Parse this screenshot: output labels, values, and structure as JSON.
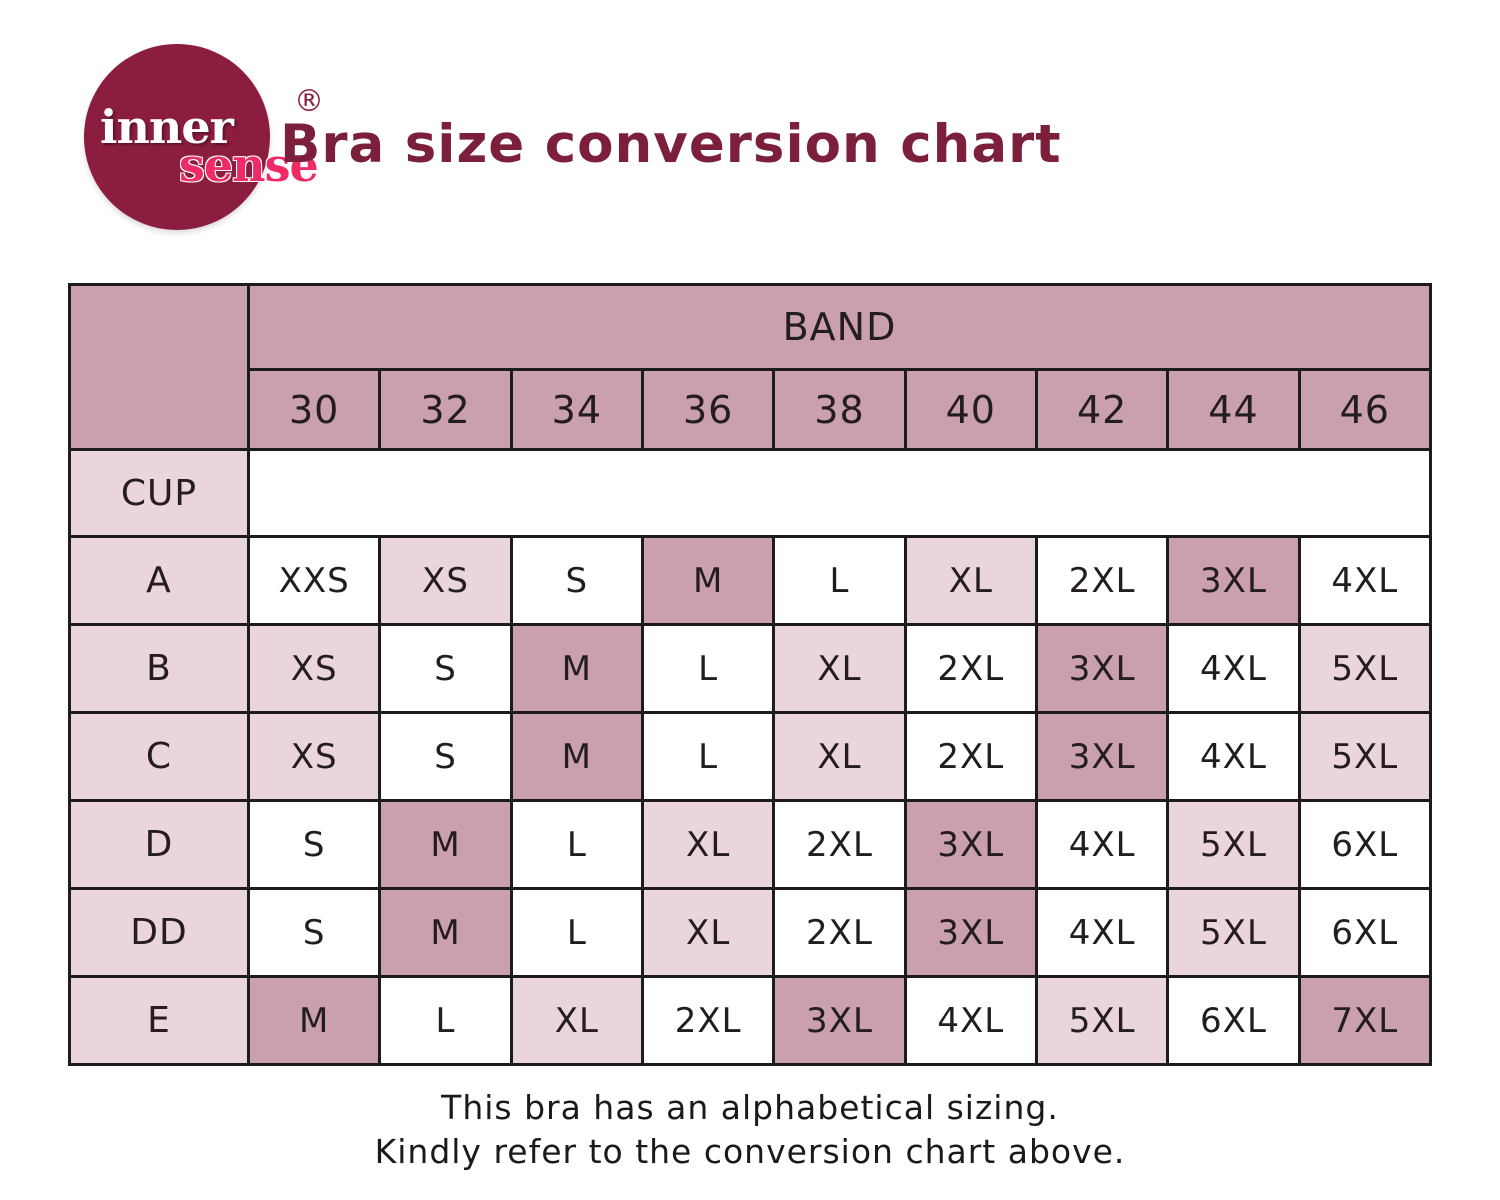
{
  "page": {
    "title": "Bra size conversion chart",
    "footer_line1": "This bra has an alphabetical sizing.",
    "footer_line2": "Kindly refer to the conversion chart above."
  },
  "logo": {
    "word1": "inner",
    "word2": "sense",
    "registered_mark": "®"
  },
  "colors": {
    "brand_maroon": "#8b1d3e",
    "title_color": "#7c1f3b",
    "sense_pink": "#ee2b67",
    "cell_dark": "#c9a0ab",
    "cell_light": "#ead5da",
    "cell_white": "#ffffff",
    "border_color": "#1c1c1c",
    "text_dark": "#241d20"
  },
  "table": {
    "band_header": "BAND",
    "bands": [
      "30",
      "32",
      "34",
      "36",
      "38",
      "40",
      "42",
      "44",
      "46"
    ],
    "cup_label": "CUP",
    "shade_legend": {
      "w": "white",
      "l": "light-pink",
      "d": "dark-mauve"
    },
    "rows": [
      {
        "label": "A",
        "cells": [
          {
            "t": "XXS",
            "s": "w"
          },
          {
            "t": "XS",
            "s": "l"
          },
          {
            "t": "S",
            "s": "w"
          },
          {
            "t": "M",
            "s": "d"
          },
          {
            "t": "L",
            "s": "w"
          },
          {
            "t": "XL",
            "s": "l"
          },
          {
            "t": "2XL",
            "s": "w"
          },
          {
            "t": "3XL",
            "s": "d"
          },
          {
            "t": "4XL",
            "s": "w"
          }
        ]
      },
      {
        "label": "B",
        "cells": [
          {
            "t": "XS",
            "s": "l"
          },
          {
            "t": "S",
            "s": "w"
          },
          {
            "t": "M",
            "s": "d"
          },
          {
            "t": "L",
            "s": "w"
          },
          {
            "t": "XL",
            "s": "l"
          },
          {
            "t": "2XL",
            "s": "w"
          },
          {
            "t": "3XL",
            "s": "d"
          },
          {
            "t": "4XL",
            "s": "w"
          },
          {
            "t": "5XL",
            "s": "l"
          }
        ]
      },
      {
        "label": "C",
        "cells": [
          {
            "t": "XS",
            "s": "l"
          },
          {
            "t": "S",
            "s": "w"
          },
          {
            "t": "M",
            "s": "d"
          },
          {
            "t": "L",
            "s": "w"
          },
          {
            "t": "XL",
            "s": "l"
          },
          {
            "t": "2XL",
            "s": "w"
          },
          {
            "t": "3XL",
            "s": "d"
          },
          {
            "t": "4XL",
            "s": "w"
          },
          {
            "t": "5XL",
            "s": "l"
          }
        ]
      },
      {
        "label": "D",
        "cells": [
          {
            "t": "S",
            "s": "w"
          },
          {
            "t": "M",
            "s": "d"
          },
          {
            "t": "L",
            "s": "w"
          },
          {
            "t": "XL",
            "s": "l"
          },
          {
            "t": "2XL",
            "s": "w"
          },
          {
            "t": "3XL",
            "s": "d"
          },
          {
            "t": "4XL",
            "s": "w"
          },
          {
            "t": "5XL",
            "s": "l"
          },
          {
            "t": "6XL",
            "s": "w"
          }
        ]
      },
      {
        "label": "DD",
        "cells": [
          {
            "t": "S",
            "s": "w"
          },
          {
            "t": "M",
            "s": "d"
          },
          {
            "t": "L",
            "s": "w"
          },
          {
            "t": "XL",
            "s": "l"
          },
          {
            "t": "2XL",
            "s": "w"
          },
          {
            "t": "3XL",
            "s": "d"
          },
          {
            "t": "4XL",
            "s": "w"
          },
          {
            "t": "5XL",
            "s": "l"
          },
          {
            "t": "6XL",
            "s": "w"
          }
        ]
      },
      {
        "label": "E",
        "cells": [
          {
            "t": "M",
            "s": "d"
          },
          {
            "t": "L",
            "s": "w"
          },
          {
            "t": "XL",
            "s": "l"
          },
          {
            "t": "2XL",
            "s": "w"
          },
          {
            "t": "3XL",
            "s": "d"
          },
          {
            "t": "4XL",
            "s": "w"
          },
          {
            "t": "5XL",
            "s": "l"
          },
          {
            "t": "6XL",
            "s": "w"
          },
          {
            "t": "7XL",
            "s": "d"
          }
        ]
      }
    ]
  }
}
